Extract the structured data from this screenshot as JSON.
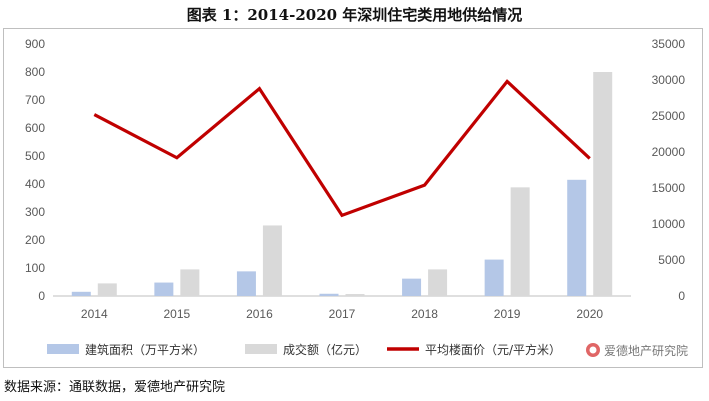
{
  "title": "图表 1：2014-2020 年深圳住宅类用地供给情况",
  "source": "数据来源：通联数据，爱德地产研究院",
  "watermark": "爱德地产研究院",
  "chart_data": {
    "type": "bar",
    "categories": [
      "2014",
      "2015",
      "2016",
      "2017",
      "2018",
      "2019",
      "2020"
    ],
    "y_left": {
      "lim": [
        0,
        900
      ],
      "ticks": [
        0,
        100,
        200,
        300,
        400,
        500,
        600,
        700,
        800,
        900
      ]
    },
    "y_right": {
      "lim": [
        0,
        35000
      ],
      "ticks": [
        0,
        5000,
        10000,
        15000,
        20000,
        25000,
        30000,
        35000
      ]
    },
    "series": [
      {
        "name": "建筑面积（万平方米）",
        "type": "bar",
        "axis": "left",
        "color": "#b4c7e7",
        "values": [
          15,
          48,
          88,
          8,
          62,
          130,
          415
        ]
      },
      {
        "name": "成交额（亿元）",
        "type": "bar",
        "axis": "left",
        "color": "#d9d9d9",
        "values": [
          45,
          95,
          252,
          7,
          95,
          388,
          800
        ]
      },
      {
        "name": "平均楼面价（元/平方米）",
        "type": "line",
        "axis": "right",
        "color": "#c00000",
        "values": [
          25200,
          19200,
          28800,
          11200,
          15400,
          29800,
          19100
        ]
      }
    ],
    "grid": false,
    "legend_position": "bottom"
  }
}
